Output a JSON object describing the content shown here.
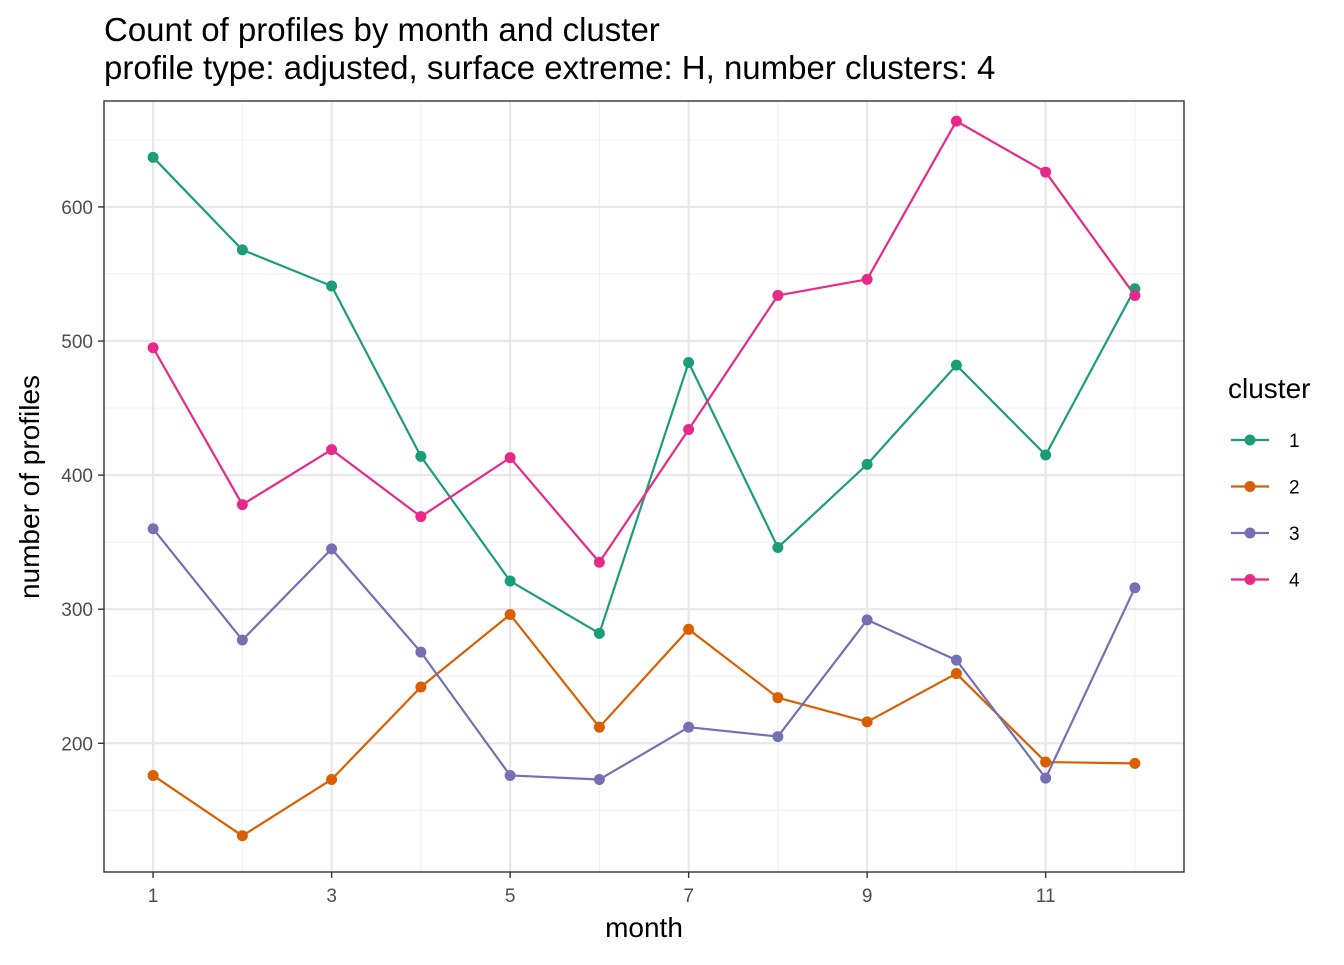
{
  "chart_data": {
    "type": "line",
    "title": "Count of profiles by month and cluster",
    "subtitle": "profile type: adjusted, surface extreme: H, number clusters: 4",
    "xlabel": "month",
    "ylabel": "number of profiles",
    "x": [
      1,
      2,
      3,
      4,
      5,
      6,
      7,
      8,
      9,
      10,
      11,
      12
    ],
    "x_ticks": [
      1,
      3,
      5,
      7,
      9,
      11
    ],
    "y_ticks": [
      200,
      300,
      400,
      500,
      600
    ],
    "xlim": [
      0.45,
      12.55
    ],
    "ylim": [
      104,
      679
    ],
    "grid": true,
    "legend_title": "cluster",
    "legend_position": "right",
    "series": [
      {
        "name": "1",
        "color": "#1b9e77",
        "values": [
          637,
          568,
          541,
          414,
          321,
          282,
          484,
          346,
          408,
          482,
          415,
          539
        ]
      },
      {
        "name": "2",
        "color": "#d95f02",
        "values": [
          176,
          131,
          173,
          242,
          296,
          212,
          285,
          234,
          216,
          252,
          186,
          185
        ]
      },
      {
        "name": "3",
        "color": "#7570b3",
        "values": [
          360,
          277,
          345,
          268,
          176,
          173,
          212,
          205,
          292,
          262,
          174,
          316
        ]
      },
      {
        "name": "4",
        "color": "#e7298a",
        "values": [
          495,
          378,
          419,
          369,
          413,
          335,
          434,
          534,
          546,
          664,
          626,
          534
        ]
      }
    ]
  }
}
